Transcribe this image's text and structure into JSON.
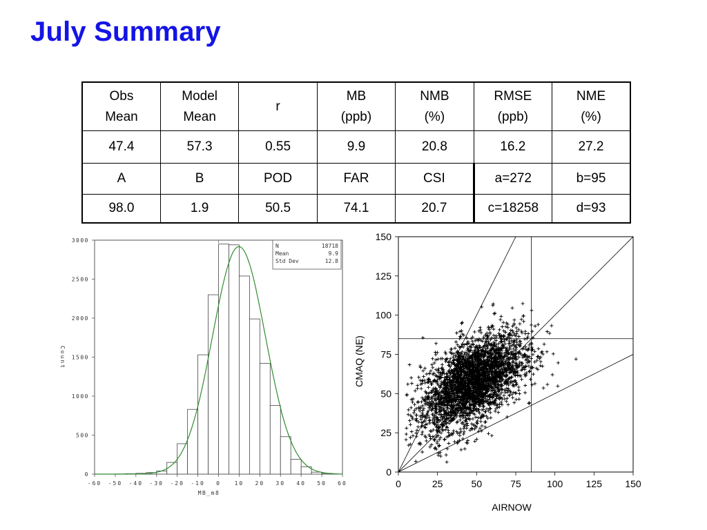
{
  "title": "July Summary",
  "table": {
    "row1_headers": [
      [
        "Obs",
        "Mean"
      ],
      [
        "Model",
        "Mean"
      ],
      [
        "r",
        ""
      ],
      [
        "MB",
        "(ppb)"
      ],
      [
        "NMB",
        "(%)"
      ],
      [
        "RMSE",
        "(ppb)"
      ],
      [
        "NME",
        "(%)"
      ]
    ],
    "row1_values": [
      "47.4",
      "57.3",
      "0.55",
      "9.9",
      "20.8",
      "16.2",
      "27.2"
    ],
    "row2_headers": [
      "A",
      "B",
      "POD",
      "FAR",
      "CSI",
      "a=272",
      "b=95"
    ],
    "row2_values": [
      "98.0",
      "1.9",
      "50.5",
      "74.1",
      "20.7",
      "c=18258",
      "d=93"
    ]
  },
  "chart_data": [
    {
      "type": "bar",
      "xlabel": "MB_m8",
      "ylabel": "Count",
      "xlim": [
        -60,
        60
      ],
      "ylim": [
        0,
        3000
      ],
      "x_ticks": [
        -60,
        -50,
        -40,
        -30,
        -20,
        -10,
        0,
        10,
        20,
        30,
        40,
        50,
        60
      ],
      "y_ticks": [
        0,
        500,
        1000,
        1500,
        2000,
        2500,
        3000
      ],
      "bin_width": 5,
      "bins": [
        {
          "x": -47.5,
          "count": 2
        },
        {
          "x": -42.5,
          "count": 5
        },
        {
          "x": -37.5,
          "count": 10
        },
        {
          "x": -32.5,
          "count": 20
        },
        {
          "x": -27.5,
          "count": 40
        },
        {
          "x": -22.5,
          "count": 150
        },
        {
          "x": -17.5,
          "count": 390
        },
        {
          "x": -12.5,
          "count": 830
        },
        {
          "x": -7.5,
          "count": 1530
        },
        {
          "x": -2.5,
          "count": 2300
        },
        {
          "x": 2.5,
          "count": 2950
        },
        {
          "x": 7.5,
          "count": 2940
        },
        {
          "x": 12.5,
          "count": 2540
        },
        {
          "x": 17.5,
          "count": 1990
        },
        {
          "x": 22.5,
          "count": 1420
        },
        {
          "x": 27.5,
          "count": 880
        },
        {
          "x": 32.5,
          "count": 480
        },
        {
          "x": 37.5,
          "count": 190
        },
        {
          "x": 42.5,
          "count": 95
        },
        {
          "x": 47.5,
          "count": 25
        },
        {
          "x": 52.5,
          "count": 10
        }
      ],
      "normal_fit": {
        "mean": 9.9,
        "std": 12.8,
        "n": 18718
      },
      "reference_line_x": 0,
      "stats_box": [
        {
          "label": "N",
          "value": "18718"
        },
        {
          "label": "Mean",
          "value": "9.9"
        },
        {
          "label": "Std Dev",
          "value": "12.8"
        }
      ],
      "fit_color": "#2e8b2e"
    },
    {
      "type": "scatter",
      "xlabel": "AIRNOW",
      "ylabel": "CMAQ (NE)",
      "xlim": [
        0,
        150
      ],
      "ylim": [
        0,
        150
      ],
      "x_ticks": [
        0,
        25,
        50,
        75,
        100,
        125,
        150
      ],
      "y_ticks": [
        0,
        25,
        50,
        75,
        100,
        125,
        150
      ],
      "threshold_x": 85,
      "threshold_y": 85,
      "reference_lines": [
        {
          "slope": 2.0,
          "intercept": 0
        },
        {
          "slope": 1.0,
          "intercept": 0
        },
        {
          "slope": 0.5,
          "intercept": 0
        }
      ],
      "point_cloud": {
        "n": 18718,
        "x_mean": 47.4,
        "y_mean": 57.3,
        "x_std": 16,
        "y_std": 15,
        "correlation": 0.55
      },
      "marker": "+"
    }
  ]
}
